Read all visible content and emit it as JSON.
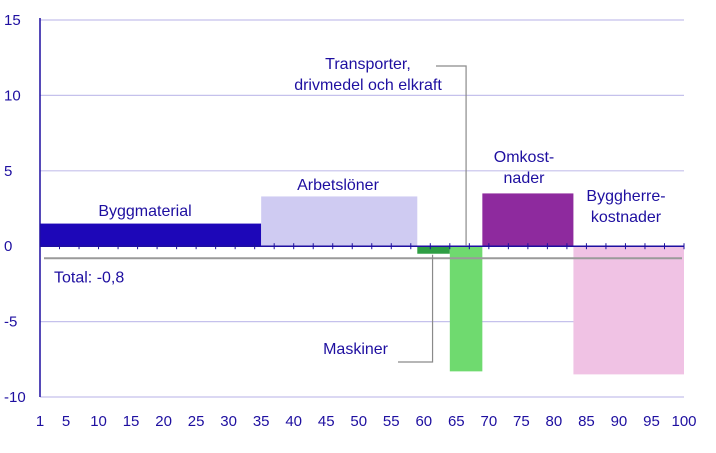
{
  "chart_data": {
    "type": "bar",
    "title": "",
    "xlabel": "",
    "ylabel": "",
    "ylim": [
      -10,
      15
    ],
    "y_ticks": [
      "15",
      "10",
      "5",
      "0",
      "-5",
      "-10"
    ],
    "y_tick_values": [
      15,
      10,
      5,
      0,
      -5,
      -10
    ],
    "x_ticks": [
      "1",
      "5",
      "10",
      "15",
      "20",
      "25",
      "30",
      "35",
      "40",
      "45",
      "50",
      "55",
      "60",
      "65",
      "70",
      "75",
      "80",
      "85",
      "90",
      "95",
      "100"
    ],
    "x_tick_values": [
      1,
      5,
      10,
      15,
      20,
      25,
      30,
      35,
      40,
      45,
      50,
      55,
      60,
      65,
      70,
      75,
      80,
      85,
      90,
      95,
      100
    ],
    "xlim": [
      1,
      100
    ],
    "grid": true,
    "series": [
      {
        "label_lines": [
          "Byggmaterial"
        ],
        "x_start": 1,
        "x_end": 35,
        "value": 1.5,
        "color": "#1d07b8"
      },
      {
        "label_lines": [
          "Arbetslöner"
        ],
        "x_start": 35,
        "x_end": 59,
        "value": 3.3,
        "color": "#cfcbf2"
      },
      {
        "label_lines": [
          "Maskiner"
        ],
        "x_start": 59,
        "x_end": 64,
        "value": -0.5,
        "color": "#2e9e44"
      },
      {
        "label_lines": [
          "Transporter,",
          "drivmedel och elkraft"
        ],
        "x_start": 64,
        "x_end": 69,
        "value": -8.3,
        "color": "#6fda6f"
      },
      {
        "label_lines": [
          "Omkost-",
          "nader"
        ],
        "x_start": 69,
        "x_end": 83,
        "value": 3.5,
        "color": "#8e2a9e"
      },
      {
        "label_lines": [
          "Byggherre-",
          "kostnader"
        ],
        "x_start": 83,
        "x_end": 100,
        "value": -8.5,
        "color": "#f0c2e4"
      }
    ],
    "total": {
      "label": "Total: -0,8",
      "value": -0.8,
      "color": "#9a9a9a"
    },
    "colors": {
      "axis": "#1e0fa0",
      "grid": "#c5c1ec",
      "text": "#1e0fa0",
      "leader": "#8a8a8a"
    }
  }
}
